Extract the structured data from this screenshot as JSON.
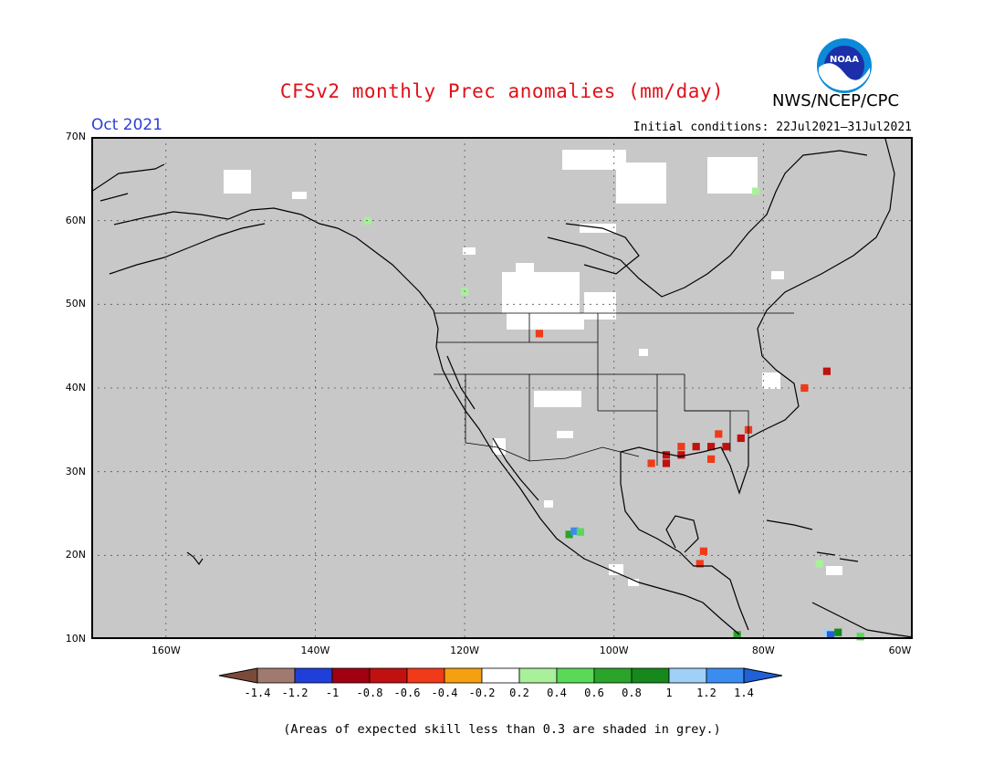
{
  "header": {
    "title": "CFSv2 monthly Prec anomalies (mm/day)",
    "agency": "NWS/NCEP/CPC",
    "logo_text": "NOAA",
    "period": "Oct 2021",
    "initial_conditions": "Initial conditions: 22Jul2021–31Jul2021"
  },
  "map": {
    "projection": "lat-lon",
    "lon_range": [
      -170,
      -60
    ],
    "lat_range": [
      10,
      70
    ],
    "background_color": "#c8c8c8",
    "lat_ticks": [
      "10N",
      "20N",
      "30N",
      "40N",
      "50N",
      "60N",
      "70N"
    ],
    "lon_ticks": [
      "160W",
      "140W",
      "120W",
      "100W",
      "80W",
      "60W"
    ],
    "grid": "dotted",
    "anomaly_cells": [
      {
        "lon": -110,
        "lat": 46.5,
        "value": -0.5
      },
      {
        "lon": -95,
        "lat": 31,
        "value": -0.5
      },
      {
        "lon": -93,
        "lat": 31,
        "value": -0.7
      },
      {
        "lon": -93,
        "lat": 32,
        "value": -0.7
      },
      {
        "lon": -91,
        "lat": 32,
        "value": -0.7
      },
      {
        "lon": -91,
        "lat": 33,
        "value": -0.5
      },
      {
        "lon": -89,
        "lat": 33,
        "value": -0.7
      },
      {
        "lon": -87,
        "lat": 33,
        "value": -0.7
      },
      {
        "lon": -85,
        "lat": 33,
        "value": -0.7
      },
      {
        "lon": -83,
        "lat": 34,
        "value": -0.7
      },
      {
        "lon": -82,
        "lat": 35,
        "value": -0.5
      },
      {
        "lon": -87,
        "lat": 31.5,
        "value": -0.5
      },
      {
        "lon": -86,
        "lat": 34.5,
        "value": -0.5
      },
      {
        "lon": -74.5,
        "lat": 40,
        "value": -0.5
      },
      {
        "lon": -71.5,
        "lat": 42,
        "value": -0.7
      },
      {
        "lon": -88,
        "lat": 20.5,
        "value": -0.6
      },
      {
        "lon": -88.5,
        "lat": 19,
        "value": -0.5
      },
      {
        "lon": -106,
        "lat": 22.5,
        "value": 0.7
      },
      {
        "lon": -105.3,
        "lat": 22.9,
        "value": 1.3
      },
      {
        "lon": -104.5,
        "lat": 22.8,
        "value": 0.5
      },
      {
        "lon": -81,
        "lat": 63.5,
        "value": 0.3
      },
      {
        "lon": -133,
        "lat": 60,
        "value": 0.3
      },
      {
        "lon": -120,
        "lat": 51.5,
        "value": 0.3
      },
      {
        "lon": -72.5,
        "lat": 19,
        "value": 0.3
      },
      {
        "lon": -83.5,
        "lat": 10.5,
        "value": 0.7
      },
      {
        "lon": -71.5,
        "lat": 10.8,
        "value": 1.1
      },
      {
        "lon": -70,
        "lat": 10.8,
        "value": 0.8
      },
      {
        "lon": -67,
        "lat": 10.3,
        "value": 0.5
      },
      {
        "lon": -71,
        "lat": 10.5,
        "value": 1.4
      }
    ]
  },
  "colorbar": {
    "labels": [
      "-1.4",
      "-1.2",
      "-1",
      "-0.8",
      "-0.6",
      "-0.4",
      "-0.2",
      "0.2",
      "0.4",
      "0.6",
      "0.8",
      "1",
      "1.2",
      "1.4"
    ],
    "colors": [
      "#7a4a3a",
      "#a07a70",
      "#1f3fd8",
      "#a00010",
      "#c01010",
      "#f03a1a",
      "#f5a010",
      "#ffffff",
      "#a8f09a",
      "#5ad858",
      "#2aa42a",
      "#16881c",
      "#a0d0f8",
      "#3a8cf0",
      "#2060d8"
    ]
  },
  "footer": {
    "note": "(Areas of expected skill less than 0.3 are shaded in grey.)"
  }
}
